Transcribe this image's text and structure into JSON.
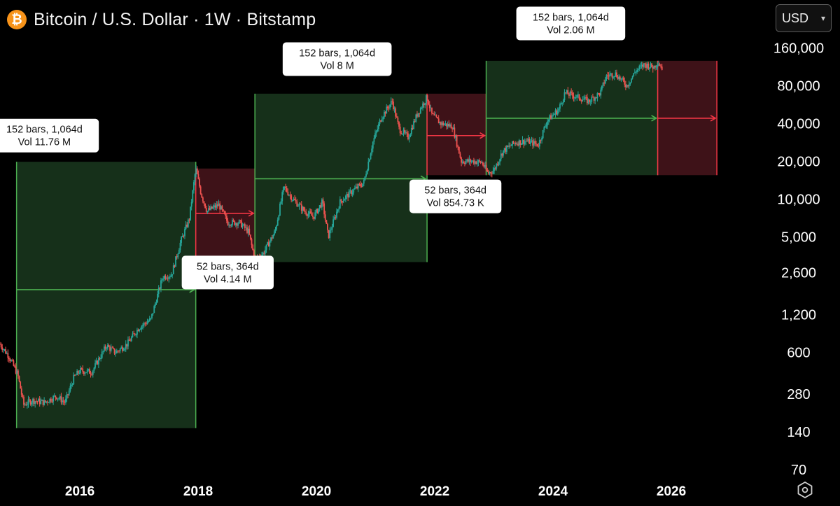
{
  "header": {
    "icon_glyph": "₿",
    "title": "Bitcoin / U.S. Dollar · 1W · Bitstamp"
  },
  "currency_select": {
    "value": "USD"
  },
  "settings": {
    "icon": "hexagon-settings-icon"
  },
  "colors": {
    "background": "#000000",
    "bull_fill": "#16301a",
    "bull_line": "#4caf50",
    "bear_fill": "#3e1218",
    "bear_line": "#f23645",
    "candle_up": "#26a69a",
    "candle_down": "#ef5350",
    "text": "#ffffff"
  },
  "chart_data": {
    "type": "candlestick",
    "title": "Bitcoin / U.S. Dollar · 1W · Bitstamp",
    "y_scale": "log",
    "ylim": [
      55,
      230000
    ],
    "xlim": [
      2014.65,
      2027.55
    ],
    "y_ticks": [
      {
        "value": 160000,
        "label": "160,000"
      },
      {
        "value": 80000,
        "label": "80,000"
      },
      {
        "value": 40000,
        "label": "40,000"
      },
      {
        "value": 20000,
        "label": "20,000"
      },
      {
        "value": 10000,
        "label": "10,000"
      },
      {
        "value": 5000,
        "label": "5,000"
      },
      {
        "value": 2600,
        "label": "2,600"
      },
      {
        "value": 1200,
        "label": "1,200"
      },
      {
        "value": 600,
        "label": "600"
      },
      {
        "value": 280,
        "label": "280"
      },
      {
        "value": 140,
        "label": "140"
      },
      {
        "value": 70,
        "label": "70"
      }
    ],
    "x_ticks": [
      {
        "value": 2016,
        "label": "2016"
      },
      {
        "value": 2018,
        "label": "2018"
      },
      {
        "value": 2020,
        "label": "2020"
      },
      {
        "value": 2022,
        "label": "2022"
      },
      {
        "value": 2024,
        "label": "2024"
      },
      {
        "value": 2026,
        "label": "2026"
      }
    ],
    "price_path": [
      [
        2014.65,
        700
      ],
      [
        2014.8,
        560
      ],
      [
        2014.95,
        400
      ],
      [
        2015.05,
        230
      ],
      [
        2015.2,
        250
      ],
      [
        2015.4,
        240
      ],
      [
        2015.6,
        270
      ],
      [
        2015.75,
        240
      ],
      [
        2015.9,
        380
      ],
      [
        2016.0,
        430
      ],
      [
        2016.2,
        420
      ],
      [
        2016.45,
        680
      ],
      [
        2016.6,
        600
      ],
      [
        2016.8,
        700
      ],
      [
        2017.0,
        950
      ],
      [
        2017.2,
        1100
      ],
      [
        2017.4,
        2400
      ],
      [
        2017.55,
        2500
      ],
      [
        2017.7,
        4500
      ],
      [
        2017.85,
        7000
      ],
      [
        2017.96,
        17500
      ],
      [
        2018.05,
        11000
      ],
      [
        2018.15,
        8000
      ],
      [
        2018.35,
        9000
      ],
      [
        2018.5,
        6500
      ],
      [
        2018.7,
        6500
      ],
      [
        2018.85,
        5500
      ],
      [
        2018.96,
        3300
      ],
      [
        2019.1,
        3700
      ],
      [
        2019.3,
        5500
      ],
      [
        2019.45,
        12500
      ],
      [
        2019.6,
        10000
      ],
      [
        2019.8,
        8000
      ],
      [
        2019.95,
        7200
      ],
      [
        2020.1,
        9500
      ],
      [
        2020.2,
        5000
      ],
      [
        2020.4,
        9500
      ],
      [
        2020.6,
        11500
      ],
      [
        2020.8,
        13500
      ],
      [
        2020.95,
        28000
      ],
      [
        2021.1,
        45000
      ],
      [
        2021.28,
        60000
      ],
      [
        2021.4,
        36000
      ],
      [
        2021.55,
        31000
      ],
      [
        2021.7,
        47000
      ],
      [
        2021.87,
        65000
      ],
      [
        2021.95,
        47000
      ],
      [
        2022.1,
        40000
      ],
      [
        2022.3,
        38000
      ],
      [
        2022.45,
        20000
      ],
      [
        2022.65,
        20000
      ],
      [
        2022.8,
        19500
      ],
      [
        2022.9,
        16000
      ],
      [
        2023.0,
        17000
      ],
      [
        2023.15,
        24000
      ],
      [
        2023.35,
        28000
      ],
      [
        2023.55,
        29000
      ],
      [
        2023.75,
        27000
      ],
      [
        2023.9,
        42000
      ],
      [
        2024.1,
        52000
      ],
      [
        2024.2,
        70000
      ],
      [
        2024.45,
        64000
      ],
      [
        2024.6,
        60000
      ],
      [
        2024.8,
        70000
      ],
      [
        2024.9,
        95000
      ],
      [
        2025.05,
        100000
      ],
      [
        2025.25,
        80000
      ],
      [
        2025.4,
        105000
      ],
      [
        2025.55,
        118000
      ],
      [
        2025.7,
        112000
      ],
      [
        2025.77,
        124000
      ],
      [
        2025.86,
        108000
      ]
    ],
    "series": [
      {
        "name": "152 bars, 1,064d",
        "kind": "bull_range",
        "x0": 2014.93,
        "x1": 2017.96,
        "y0": 150,
        "y1": 19800,
        "arrow_y": 1900
      },
      {
        "name": "52 bars, 364d",
        "kind": "bear_range",
        "x0": 2017.96,
        "x1": 2018.96,
        "y0": 3300,
        "y1": 17500,
        "arrow_y": 7700
      },
      {
        "name": "152 bars, 1,064d",
        "kind": "bull_range",
        "x0": 2018.96,
        "x1": 2021.87,
        "y0": 3150,
        "y1": 69000,
        "arrow_y": 14500
      },
      {
        "name": "52 bars, 364d",
        "kind": "bear_range",
        "x0": 2021.87,
        "x1": 2022.87,
        "y0": 15500,
        "y1": 69000,
        "arrow_y": 32000
      },
      {
        "name": "152 bars, 1,064d",
        "kind": "bull_range",
        "x0": 2022.87,
        "x1": 2025.77,
        "y0": 15500,
        "y1": 126000,
        "arrow_y": 44000
      },
      {
        "name": "52 bars, 364d",
        "kind": "bear_range",
        "x0": 2025.77,
        "x1": 2026.77,
        "y0": 15500,
        "y1": 126000,
        "arrow_y": 44000
      }
    ],
    "annotations": [
      {
        "line1": "152 bars, 1,064d",
        "line2": "Vol 11.76 M",
        "anchor_x": 2015.4,
        "anchor_y": 32000
      },
      {
        "line1": "52 bars, 364d",
        "line2": "Vol 4.14 M",
        "anchor_x": 2018.5,
        "anchor_y": 2600
      },
      {
        "line1": "152 bars, 1,064d",
        "line2": "Vol 8 M",
        "anchor_x": 2020.35,
        "anchor_y": 130000
      },
      {
        "line1": "52 bars, 364d",
        "line2": "Vol 854.73 K",
        "anchor_x": 2022.35,
        "anchor_y": 10500
      },
      {
        "line1": "152 bars, 1,064d",
        "line2": "Vol 2.06 M",
        "anchor_x": 2024.3,
        "anchor_y": 250000
      }
    ]
  }
}
